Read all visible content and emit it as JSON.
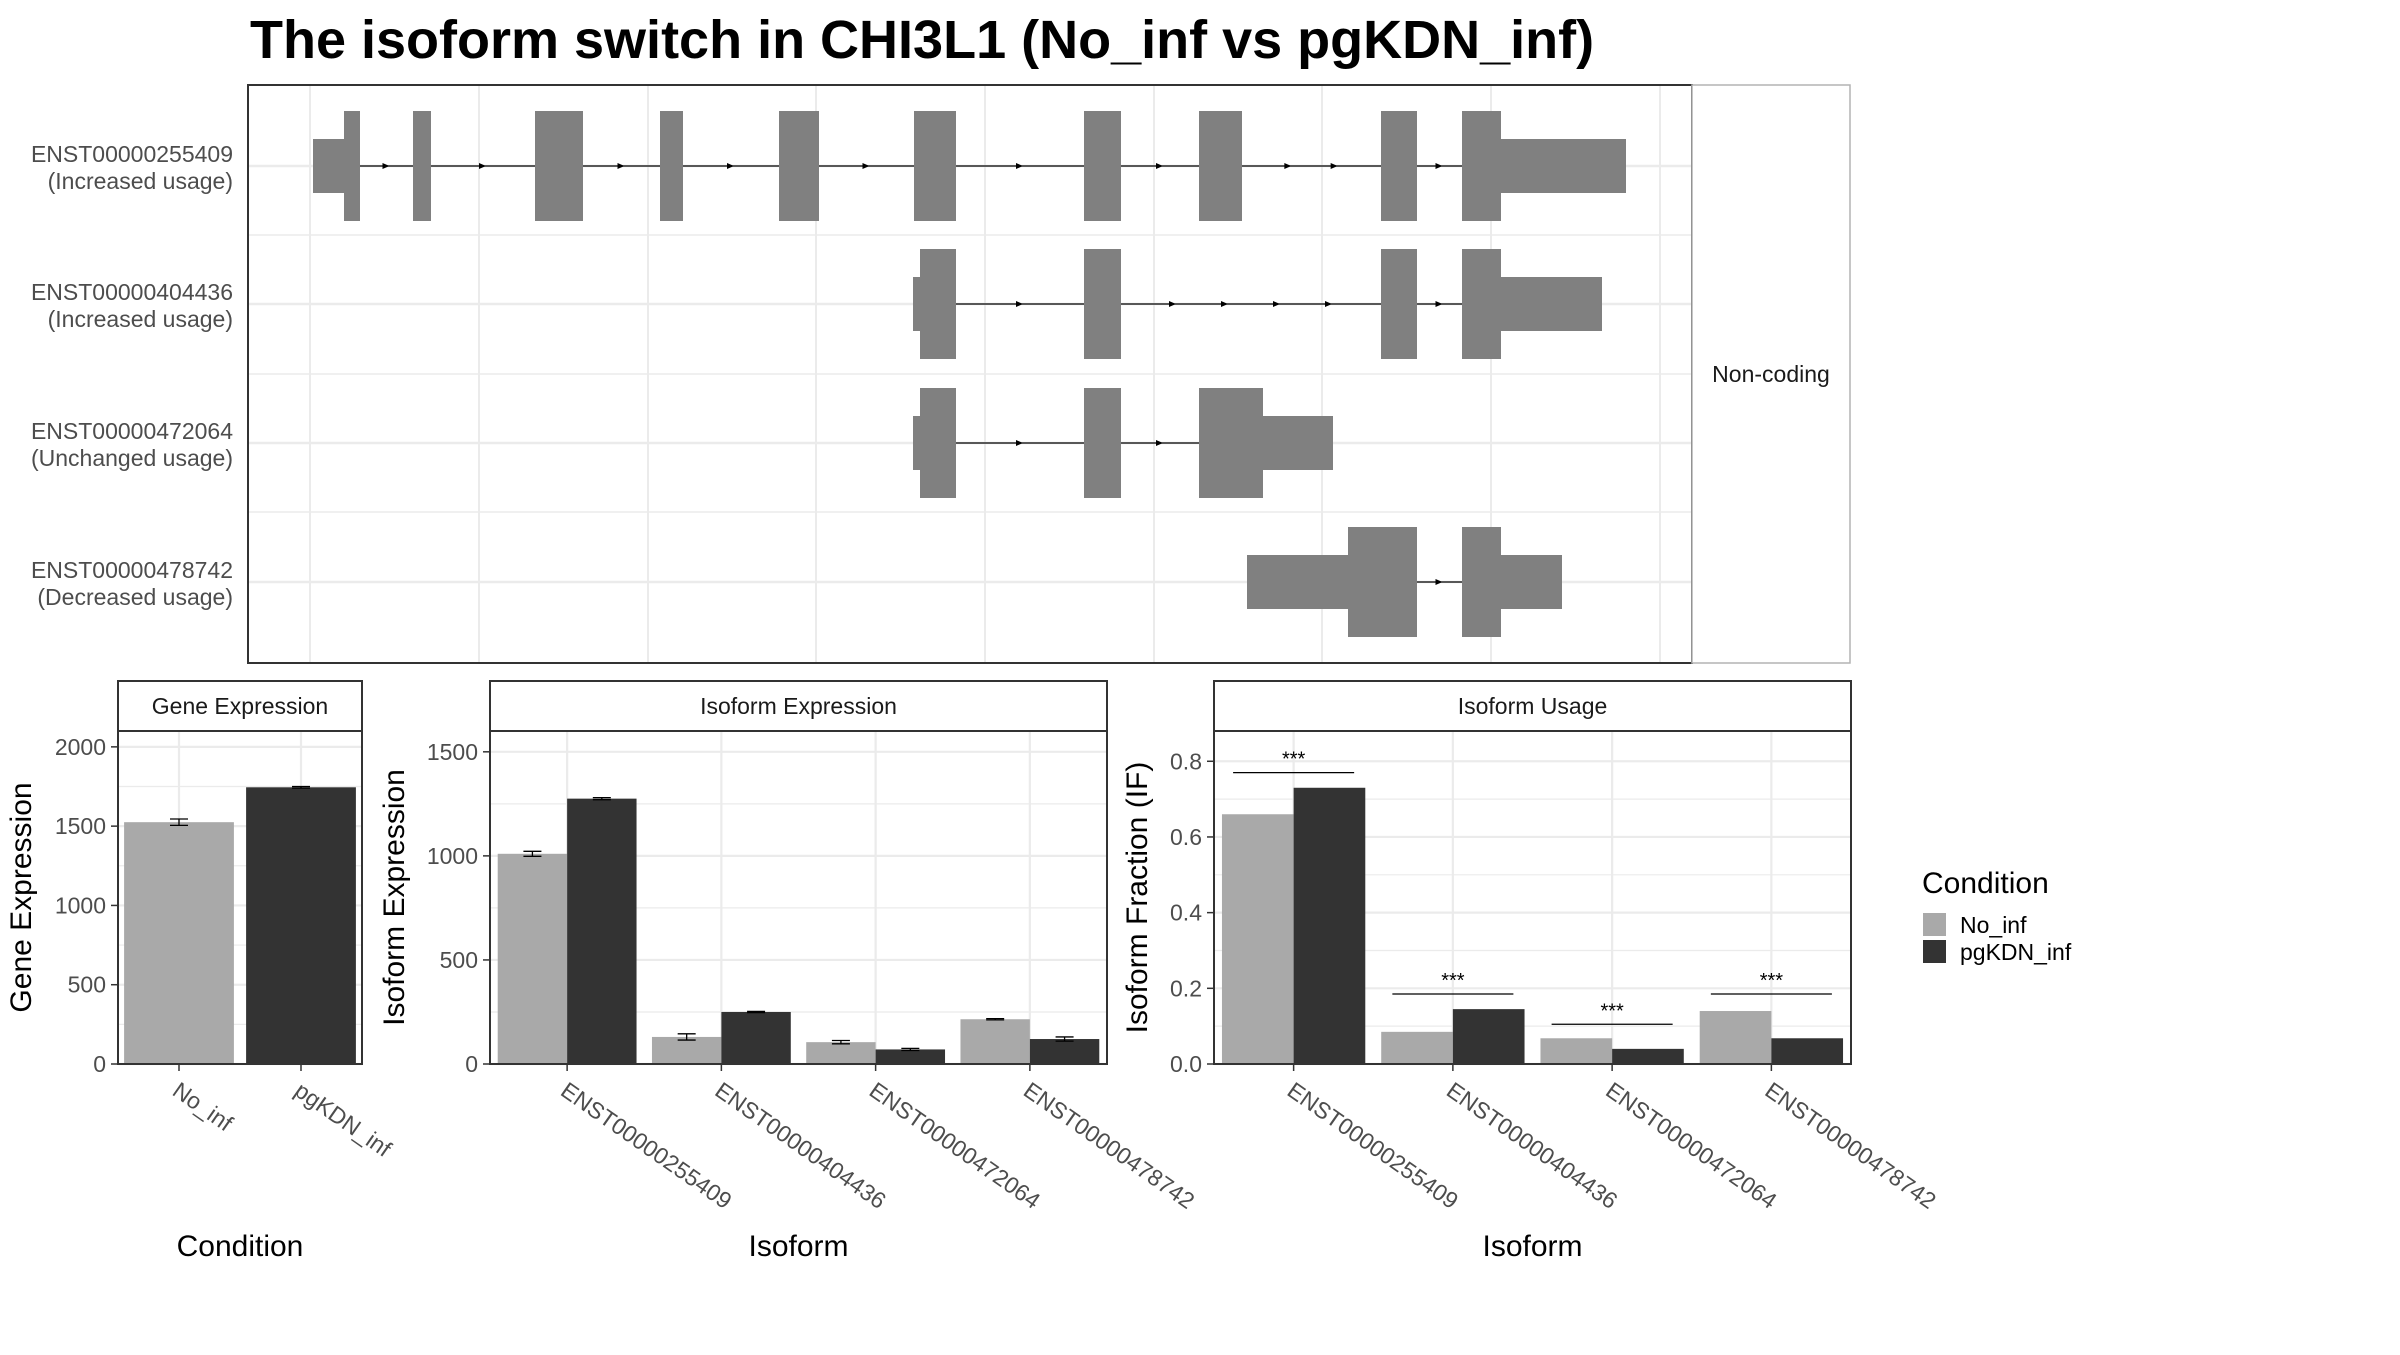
{
  "title": "The isoform switch in CHI3L1 (No_inf vs pgKDN_inf)",
  "colors": {
    "no_inf": "#A9A9A9",
    "pgkdn_inf": "#333333",
    "exon": "#808080",
    "grid": "#EBEBEB",
    "strip": "#FFFFFF",
    "axis_text": "#4D4D4D"
  },
  "chart_data": [
    {
      "type": "gene_structure",
      "panel_strip": "Non-coding",
      "isoforms": [
        {
          "label": "ENST00000255409",
          "usage": "(Increased usage)"
        },
        {
          "label": "ENST00000404436",
          "usage": "(Increased usage)"
        },
        {
          "label": "ENST00000472064",
          "usage": "(Unchanged usage)"
        },
        {
          "label": "ENST00000478742",
          "usage": "(Decreased usage)"
        }
      ]
    },
    {
      "type": "bar",
      "strip": "Gene Expression",
      "xlabel": "Condition",
      "ylabel": "Gene Expression",
      "ylim": [
        0,
        2100
      ],
      "yticks": [
        0,
        500,
        1000,
        1500,
        2000
      ],
      "categories": [
        "No_inf",
        "pgKDN_inf"
      ],
      "values": [
        1525,
        1745
      ],
      "errors": [
        20,
        5
      ]
    },
    {
      "type": "bar",
      "strip": "Isoform Expression",
      "xlabel": "Isoform",
      "ylabel": "Isoform Expression",
      "ylim": [
        0,
        1600
      ],
      "yticks": [
        0,
        500,
        1000,
        1500
      ],
      "categories": [
        "ENST00000255409",
        "ENST00000404436",
        "ENST00000472064",
        "ENST00000478742"
      ],
      "series": [
        {
          "name": "No_inf",
          "values": [
            1010,
            130,
            105,
            215
          ],
          "errors": [
            12,
            15,
            8,
            3
          ]
        },
        {
          "name": "pgKDN_inf",
          "values": [
            1275,
            250,
            70,
            120
          ],
          "errors": [
            5,
            3,
            5,
            10
          ]
        }
      ]
    },
    {
      "type": "bar",
      "strip": "Isoform Usage",
      "xlabel": "Isoform",
      "ylabel": "Isoform Fraction (IF)",
      "ylim": [
        0,
        0.88
      ],
      "yticks": [
        0.0,
        0.2,
        0.4,
        0.6,
        0.8
      ],
      "ytick_labels": [
        "0.0",
        "0.2",
        "0.4",
        "0.6",
        "0.8"
      ],
      "categories": [
        "ENST00000255409",
        "ENST00000404436",
        "ENST00000472064",
        "ENST00000478742"
      ],
      "series": [
        {
          "name": "No_inf",
          "values": [
            0.66,
            0.085,
            0.068,
            0.14
          ]
        },
        {
          "name": "pgKDN_inf",
          "values": [
            0.73,
            0.145,
            0.04,
            0.068
          ]
        }
      ],
      "significance": [
        "***",
        "***",
        "***",
        "***"
      ],
      "sig_line_y": [
        0.77,
        0.185,
        0.105,
        0.185
      ]
    }
  ],
  "legend": {
    "title": "Condition",
    "items": [
      {
        "name": "No_inf",
        "color": "#A9A9A9"
      },
      {
        "name": "pgKDN_inf",
        "color": "#333333"
      }
    ]
  }
}
